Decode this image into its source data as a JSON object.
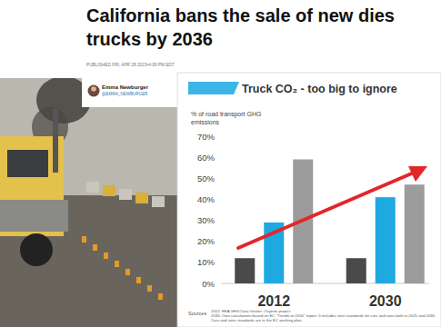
{
  "article": {
    "headline_lines": [
      "California bans the sale of new dies",
      "trucks by 2036"
    ],
    "published": "PUBLISHED FRI, APR 28 2023•4:09 PM EDT",
    "author": "Emma Newburger",
    "handle": "@EMMA_NEWBURGER"
  },
  "chart_data": {
    "type": "bar",
    "title": "Truck CO₂ - too big to ignore",
    "y_label": "% of road transport GHG emissions",
    "categories": [
      "2012",
      "2030"
    ],
    "series": [
      {
        "color": "#4a4a4a",
        "values": [
          12,
          12
        ]
      },
      {
        "color": "#1ea9e1",
        "values": [
          29,
          41
        ]
      },
      {
        "color": "#9c9c9c",
        "values": [
          59,
          47
        ]
      }
    ],
    "ylim": [
      0,
      70
    ],
    "yticks": [
      {
        "value": 0,
        "label": "0%"
      },
      {
        "value": 10,
        "label": "10%"
      },
      {
        "value": 20,
        "label": "20%"
      },
      {
        "value": 30,
        "label": "30%"
      },
      {
        "value": 40,
        "label": "40%"
      },
      {
        "value": 50,
        "label": "50%"
      },
      {
        "value": 60,
        "label": "60%"
      },
      {
        "value": 70,
        "label": "70%"
      }
    ],
    "grid": false,
    "sources": {
      "label": "Sources",
      "lines": [
        "2012: EEA GHG Data Viewer; Oxytree project",
        "2030: Own calculations based on EC \"Trends to 2050\" report. It includes strict standards for cars and vans both in 2025 and 2030. Cars and vans standards are in the EC working plan."
      ]
    }
  }
}
